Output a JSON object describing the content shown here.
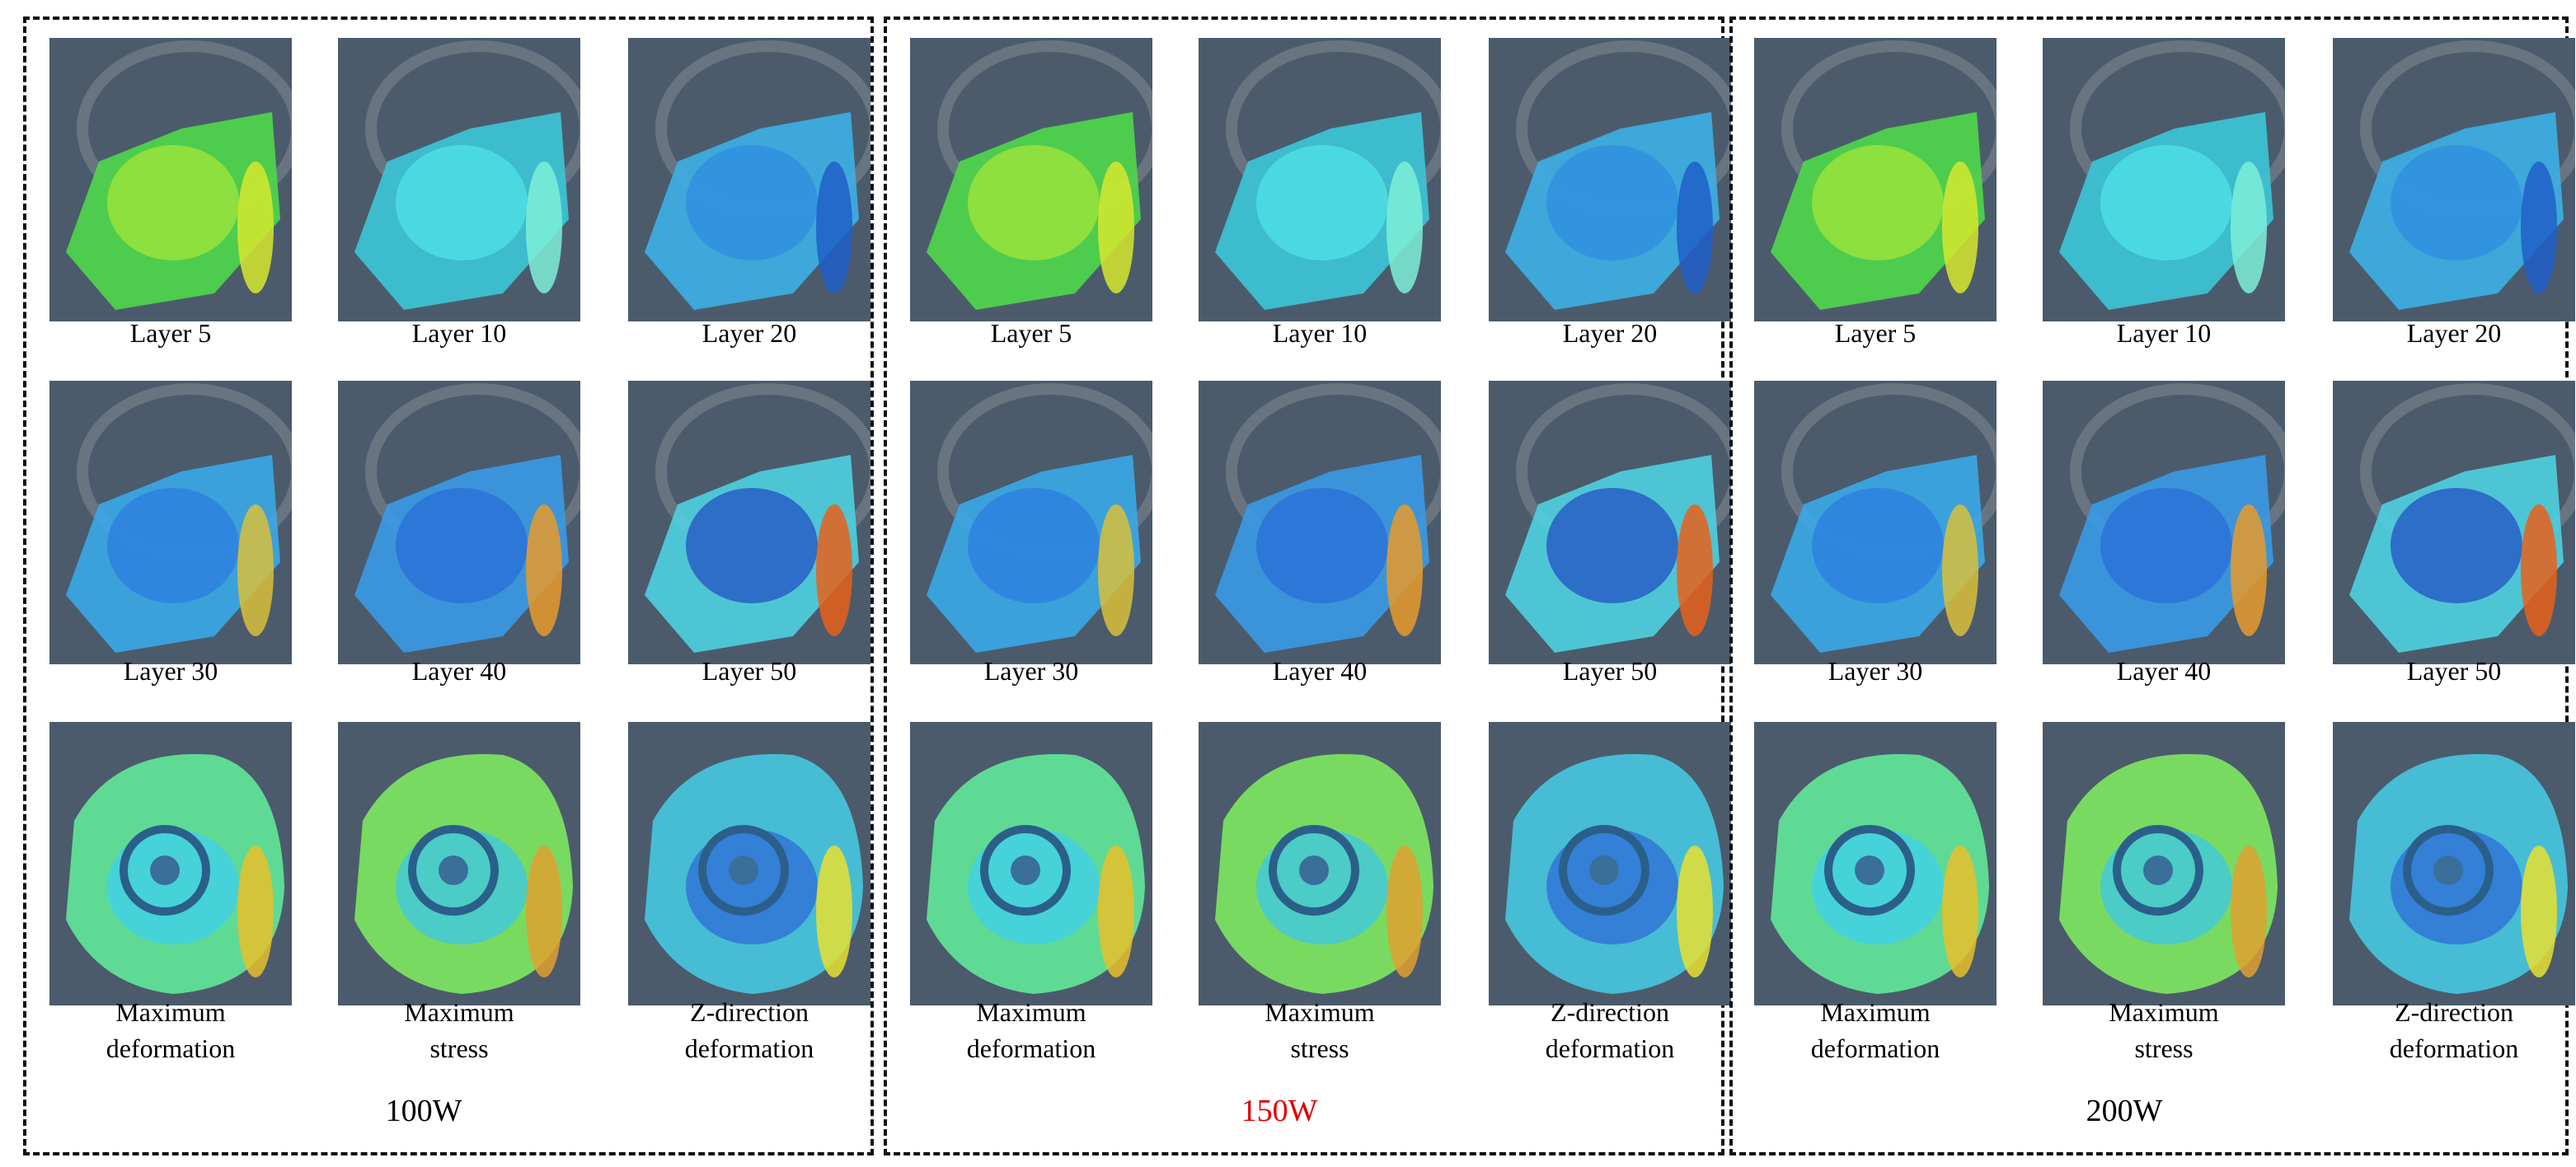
{
  "panels": [
    {
      "label": "100W",
      "label_color": "#000000",
      "cells": [
        {
          "caption": [
            "Layer 5"
          ]
        },
        {
          "caption": [
            "Layer 10"
          ]
        },
        {
          "caption": [
            "Layer 20"
          ]
        },
        {
          "caption": [
            "Layer 30"
          ]
        },
        {
          "caption": [
            "Layer 40"
          ]
        },
        {
          "caption": [
            "Layer 50"
          ]
        },
        {
          "caption": [
            "Maximum",
            "deformation"
          ]
        },
        {
          "caption": [
            "Maximum",
            "stress"
          ]
        },
        {
          "caption": [
            "Z-direction",
            "deformation"
          ]
        }
      ]
    },
    {
      "label": "150W",
      "label_color": "#e00000",
      "cells": [
        {
          "caption": [
            "Layer 5"
          ]
        },
        {
          "caption": [
            "Layer 10"
          ]
        },
        {
          "caption": [
            "Layer 20"
          ]
        },
        {
          "caption": [
            "Layer 30"
          ]
        },
        {
          "caption": [
            "Layer 40"
          ]
        },
        {
          "caption": [
            "Layer 50"
          ]
        },
        {
          "caption": [
            "Maximum",
            "deformation"
          ]
        },
        {
          "caption": [
            "Maximum",
            "stress"
          ]
        },
        {
          "caption": [
            "Z-direction",
            "deformation"
          ]
        }
      ]
    },
    {
      "label": "200W",
      "label_color": "#000000",
      "cells": [
        {
          "caption": [
            "Layer 5"
          ]
        },
        {
          "caption": [
            "Layer 10"
          ]
        },
        {
          "caption": [
            "Layer 20"
          ]
        },
        {
          "caption": [
            "Layer 30"
          ]
        },
        {
          "caption": [
            "Layer 40"
          ]
        },
        {
          "caption": [
            "Layer 50"
          ]
        },
        {
          "caption": [
            "Maximum",
            "deformation"
          ]
        },
        {
          "caption": [
            "Maximum",
            "stress"
          ]
        },
        {
          "caption": [
            "Z-direction",
            "deformation"
          ]
        }
      ]
    }
  ]
}
